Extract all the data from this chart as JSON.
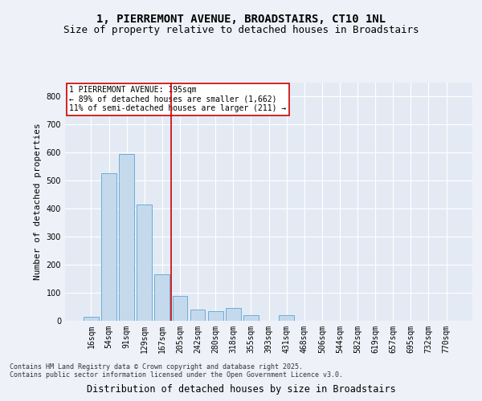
{
  "title_line1": "1, PIERREMONT AVENUE, BROADSTAIRS, CT10 1NL",
  "title_line2": "Size of property relative to detached houses in Broadstairs",
  "xlabel": "Distribution of detached houses by size in Broadstairs",
  "ylabel": "Number of detached properties",
  "categories": [
    "16sqm",
    "54sqm",
    "91sqm",
    "129sqm",
    "167sqm",
    "205sqm",
    "242sqm",
    "280sqm",
    "318sqm",
    "355sqm",
    "393sqm",
    "431sqm",
    "468sqm",
    "506sqm",
    "544sqm",
    "582sqm",
    "619sqm",
    "657sqm",
    "695sqm",
    "732sqm",
    "770sqm"
  ],
  "values": [
    15,
    525,
    595,
    415,
    165,
    90,
    40,
    35,
    45,
    20,
    0,
    20,
    0,
    0,
    0,
    0,
    0,
    0,
    0,
    0,
    0
  ],
  "bar_color": "#c5d9ed",
  "bar_edge_color": "#6aaed6",
  "property_line_x": 4.5,
  "property_line_color": "#cc0000",
  "annotation_text": "1 PIERREMONT AVENUE: 195sqm\n← 89% of detached houses are smaller (1,662)\n11% of semi-detached houses are larger (211) →",
  "annotation_box_facecolor": "#ffffff",
  "annotation_box_edgecolor": "#cc0000",
  "ylim": [
    0,
    850
  ],
  "yticks": [
    0,
    100,
    200,
    300,
    400,
    500,
    600,
    700,
    800
  ],
  "footnote": "Contains HM Land Registry data © Crown copyright and database right 2025.\nContains public sector information licensed under the Open Government Licence v3.0.",
  "background_color": "#eef2f8",
  "plot_background": "#e4eaf4",
  "grid_color": "#ffffff",
  "title_fontsize": 10,
  "subtitle_fontsize": 9,
  "tick_fontsize": 7,
  "ylabel_fontsize": 8,
  "xlabel_fontsize": 8.5,
  "annotation_fontsize": 7,
  "footnote_fontsize": 6
}
